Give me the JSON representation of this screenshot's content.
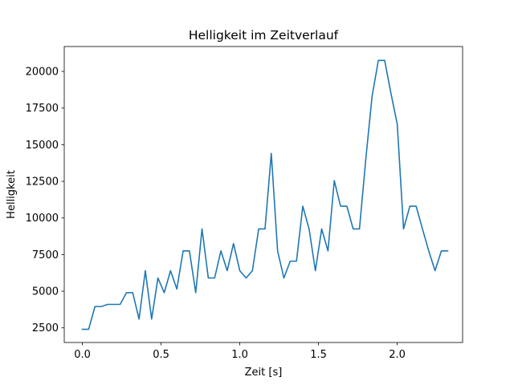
{
  "chart_data": {
    "type": "line",
    "title": "Helligkeit im Zeitverlauf",
    "xlabel": "Zeit [s]",
    "ylabel": "Helligkeit",
    "xlim": [
      -0.115,
      2.415
    ],
    "ylim": [
      1500,
      21700
    ],
    "xticks": [
      0.0,
      0.5,
      1.0,
      1.5,
      2.0
    ],
    "xtick_labels": [
      "0.0",
      "0.5",
      "1.0",
      "1.5",
      "2.0"
    ],
    "yticks": [
      2500,
      5000,
      7500,
      10000,
      12500,
      15000,
      17500,
      20000
    ],
    "ytick_labels": [
      "2500",
      "5000",
      "7500",
      "10000",
      "12500",
      "15000",
      "17500",
      "20000"
    ],
    "grid": false,
    "legend": "none",
    "line_color": "#1f77b4",
    "series": [
      {
        "x": [
          0.0,
          0.04,
          0.08,
          0.12,
          0.16,
          0.2,
          0.24,
          0.28,
          0.32,
          0.36,
          0.4,
          0.44,
          0.48,
          0.52,
          0.56,
          0.6,
          0.64,
          0.68,
          0.72,
          0.76,
          0.8,
          0.84,
          0.88,
          0.92,
          0.96,
          1.0,
          1.04,
          1.08,
          1.12,
          1.16,
          1.2,
          1.24,
          1.28,
          1.32,
          1.36,
          1.4,
          1.44,
          1.48,
          1.52,
          1.56,
          1.6,
          1.64,
          1.68,
          1.72,
          1.76,
          1.8,
          1.84,
          1.88,
          1.92,
          1.96,
          2.0,
          2.04,
          2.08,
          2.12,
          2.16,
          2.2,
          2.24,
          2.28,
          2.32
        ],
        "values": [
          2400,
          2400,
          3950,
          3950,
          4100,
          4100,
          4100,
          4900,
          4900,
          3100,
          6400,
          3100,
          5900,
          4900,
          6400,
          5150,
          7750,
          7750,
          4900,
          9250,
          5900,
          5900,
          7750,
          6400,
          8250,
          6400,
          5900,
          6400,
          9250,
          9250,
          14400,
          7750,
          5900,
          7050,
          7050,
          10800,
          9250,
          6400,
          9250,
          7750,
          12550,
          10800,
          10800,
          9250,
          9250,
          14000,
          18300,
          20750,
          20750,
          18500,
          16400,
          9250,
          10800,
          10800,
          9250,
          7750,
          6400,
          7750,
          7750
        ]
      }
    ]
  }
}
